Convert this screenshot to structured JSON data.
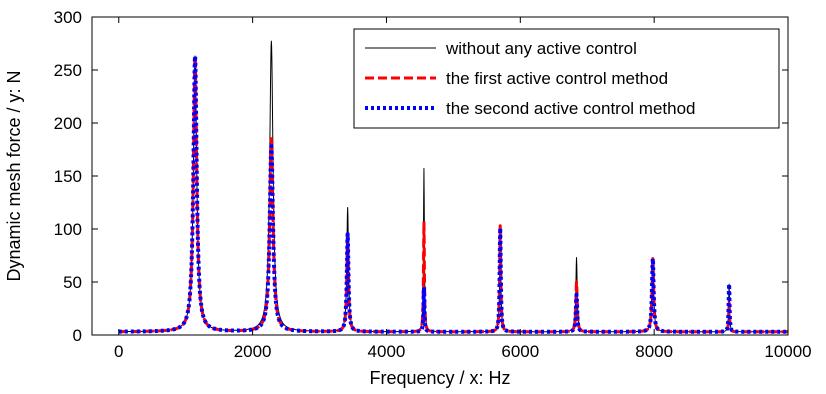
{
  "chart_data": {
    "type": "line",
    "title": "",
    "xlabel": "Frequency / x: Hz",
    "ylabel": "Dynamic mesh force / y: N",
    "xlim": [
      -400,
      10000
    ],
    "ylim": [
      0,
      300
    ],
    "xticks": [
      0,
      2000,
      4000,
      6000,
      8000,
      10000
    ],
    "yticks": [
      0,
      50,
      100,
      150,
      200,
      250,
      300
    ],
    "grid": false,
    "legend_position": "top-right",
    "baseline": 3,
    "series": [
      {
        "name": "without any active control",
        "color": "#000000",
        "style": "solid",
        "peaks": [
          {
            "f": 1140,
            "amp": 263,
            "w": 30
          },
          {
            "f": 2280,
            "amp": 277,
            "w": 30
          },
          {
            "f": 3420,
            "amp": 120,
            "w": 15
          },
          {
            "f": 4560,
            "amp": 157,
            "w": 8
          },
          {
            "f": 5700,
            "amp": 103,
            "w": 10
          },
          {
            "f": 6840,
            "amp": 73,
            "w": 12
          },
          {
            "f": 7980,
            "amp": 72,
            "w": 15
          },
          {
            "f": 9120,
            "amp": 48,
            "w": 8
          }
        ]
      },
      {
        "name": "the first active control method",
        "color": "#ff0000",
        "style": "dashed",
        "peaks": [
          {
            "f": 1140,
            "amp": 263,
            "w": 30
          },
          {
            "f": 2280,
            "amp": 185,
            "w": 30
          },
          {
            "f": 3420,
            "amp": 97,
            "w": 15
          },
          {
            "f": 4560,
            "amp": 107,
            "w": 8
          },
          {
            "f": 5700,
            "amp": 103,
            "w": 10
          },
          {
            "f": 6840,
            "amp": 50,
            "w": 12
          },
          {
            "f": 7980,
            "amp": 72,
            "w": 15
          },
          {
            "f": 9120,
            "amp": 30,
            "w": 8
          }
        ]
      },
      {
        "name": "the second active control method",
        "color": "#0000ff",
        "style": "dotted",
        "peaks": [
          {
            "f": 1140,
            "amp": 263,
            "w": 30
          },
          {
            "f": 2280,
            "amp": 178,
            "w": 30
          },
          {
            "f": 3420,
            "amp": 95,
            "w": 15
          },
          {
            "f": 4560,
            "amp": 45,
            "w": 8
          },
          {
            "f": 5700,
            "amp": 101,
            "w": 10
          },
          {
            "f": 6840,
            "amp": 38,
            "w": 12
          },
          {
            "f": 7980,
            "amp": 72,
            "w": 15
          },
          {
            "f": 9120,
            "amp": 48,
            "w": 8
          }
        ]
      }
    ]
  }
}
